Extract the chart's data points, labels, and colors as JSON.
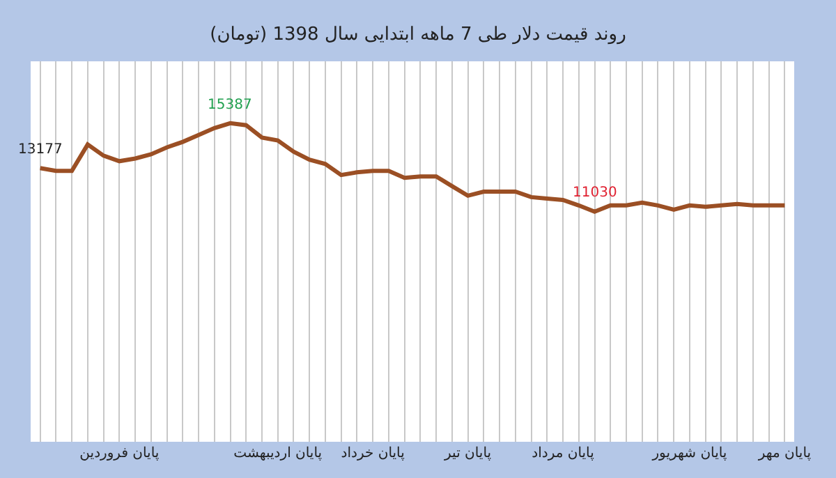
{
  "chart_data": {
    "type": "line",
    "title": "روند قیمت دلار طی 7 ماهه ابتدایی سال 1398 (تومان)",
    "categories": [
      null,
      null,
      null,
      null,
      null,
      "پایان فروردین",
      null,
      null,
      null,
      null,
      null,
      null,
      null,
      null,
      null,
      "پایان اردیبهشت",
      null,
      null,
      null,
      null,
      null,
      "پایان خرداد",
      null,
      null,
      null,
      null,
      null,
      "پایان تیر",
      null,
      null,
      null,
      null,
      null,
      "پایان مرداد",
      null,
      null,
      null,
      null,
      null,
      null,
      null,
      "پایان شهریور",
      null,
      null,
      null,
      null,
      null,
      "پایان مهر"
    ],
    "series": [
      {
        "color": "#9b4f24",
        "values": [
          13177,
          13040,
          13040,
          14340,
          13790,
          13520,
          13650,
          13860,
          14200,
          14470,
          14810,
          15150,
          15387,
          15290,
          14680,
          14540,
          13990,
          13590,
          13380,
          12840,
          12970,
          13040,
          13040,
          12700,
          12770,
          12770,
          12290,
          11820,
          12020,
          12020,
          12020,
          11750,
          11680,
          11610,
          11340,
          11030,
          11340,
          11340,
          11480,
          11340,
          11130,
          11340,
          11270,
          11340,
          11410,
          11340,
          11340,
          11340
        ],
        "value_labels": [
          "13177",
          null,
          null,
          null,
          null,
          null,
          null,
          null,
          null,
          null,
          null,
          null,
          "15387",
          null,
          null,
          null,
          null,
          null,
          null,
          null,
          null,
          null,
          null,
          null,
          null,
          null,
          null,
          null,
          null,
          null,
          null,
          null,
          null,
          null,
          null,
          "11030",
          null,
          null,
          null,
          null,
          null,
          null,
          null,
          null,
          null,
          null,
          null,
          null
        ]
      }
    ],
    "grid": "x",
    "marker": "none",
    "line_style": "solid"
  }
}
